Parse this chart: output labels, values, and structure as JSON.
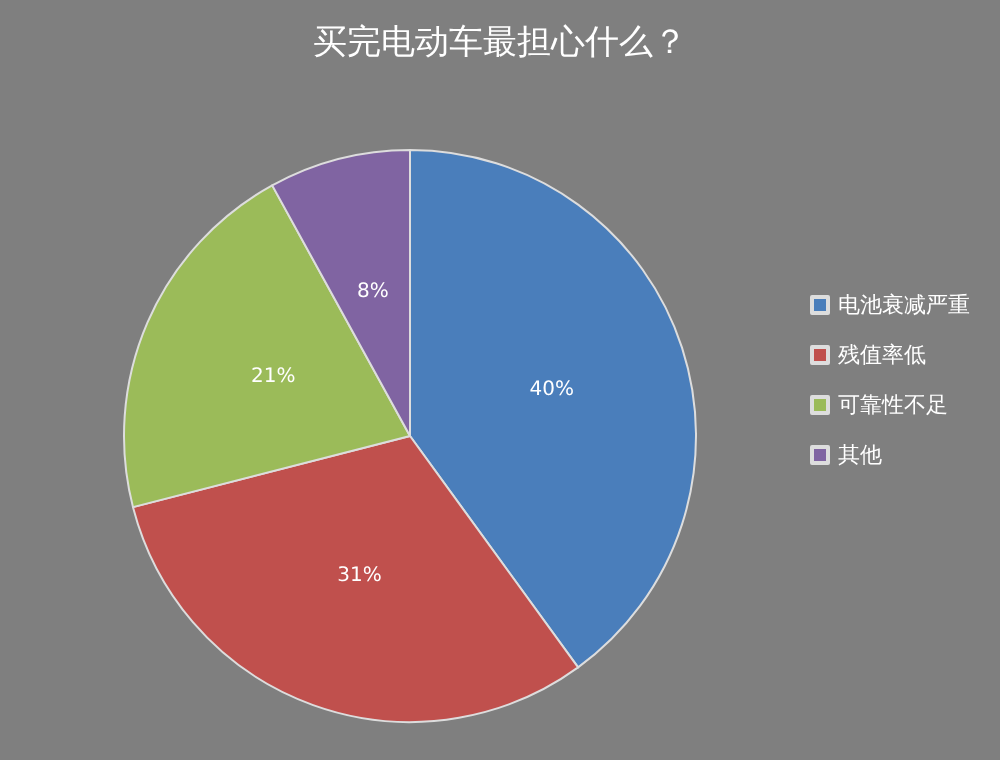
{
  "chart_data": {
    "type": "pie",
    "title": "买完电动车最担心什么？",
    "categories": [
      "电池衰减严重",
      "残值率低",
      "可靠性不足",
      "其他"
    ],
    "values": [
      40,
      31,
      21,
      8
    ],
    "colors": [
      "#4a7ebb",
      "#c0504d",
      "#9bbb59",
      "#8064a2"
    ],
    "value_labels": [
      "40%",
      "31%",
      "21%",
      "8%"
    ],
    "legend": "right"
  }
}
